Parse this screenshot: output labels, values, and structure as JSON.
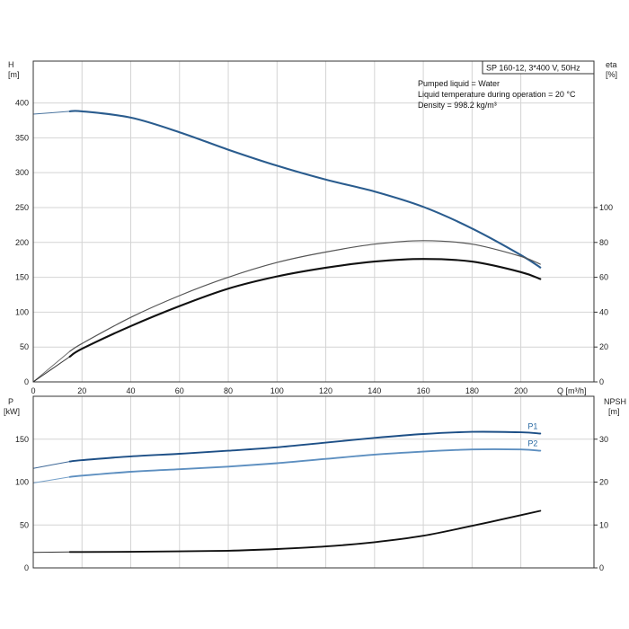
{
  "chart_data": [
    {
      "type": "line",
      "title": "SP 160-12, 3*400 V, 50Hz",
      "notes": [
        "Pumped liquid = Water",
        "Liquid temperature during operation = 20 °C",
        "Density = 998.2 kg/m³"
      ],
      "xlabel": "Q [m³/h]",
      "ylabel_left": "H",
      "ylabel_left_unit": "[m]",
      "ylabel_right": "eta",
      "ylabel_right_unit": "[%]",
      "xlim": [
        0,
        230
      ],
      "ylim_left": [
        0,
        460
      ],
      "ylim_right": [
        0,
        184
      ],
      "x_ticks": [
        0,
        20,
        40,
        60,
        80,
        100,
        120,
        140,
        160,
        180,
        200
      ],
      "y_left_ticks": [
        0,
        50,
        100,
        150,
        200,
        250,
        300,
        350,
        400
      ],
      "y_right_ticks": [
        0,
        20,
        40,
        60,
        80,
        100
      ],
      "grid": true,
      "series": [
        {
          "axis": "left",
          "color": "#2a5c8e",
          "x": [
            0,
            15,
            20,
            40,
            60,
            80,
            100,
            120,
            140,
            160,
            180,
            200,
            208
          ],
          "y": [
            384,
            388,
            388,
            379,
            358,
            333,
            310,
            290,
            273,
            251,
            220,
            182,
            164
          ]
        },
        {
          "axis": "right",
          "color": "#555555",
          "x": [
            0,
            15,
            20,
            40,
            60,
            80,
            100,
            120,
            140,
            160,
            180,
            200,
            208
          ],
          "y": [
            0,
            17.5,
            22,
            37,
            49.5,
            60,
            68.5,
            74.5,
            79,
            81,
            79,
            72,
            67.5
          ]
        },
        {
          "axis": "right",
          "color": "#111111",
          "x": [
            0,
            15,
            20,
            40,
            60,
            80,
            100,
            120,
            140,
            160,
            180,
            200,
            208
          ],
          "y": [
            0,
            14.5,
            19,
            32,
            43.5,
            53.5,
            60.5,
            65.5,
            69,
            70.5,
            69,
            63,
            59
          ]
        }
      ]
    },
    {
      "type": "line",
      "xlim": [
        0,
        230
      ],
      "ylabel_left": "P",
      "ylabel_left_unit": "[kW]",
      "ylabel_right": "NPSH",
      "ylabel_right_unit": "[m]",
      "ylim_left": [
        0,
        200
      ],
      "ylim_right": [
        0,
        40
      ],
      "x_ticks": [
        0,
        20,
        40,
        60,
        80,
        100,
        120,
        140,
        160,
        180,
        200
      ],
      "y_left_ticks": [
        0,
        50,
        100,
        150
      ],
      "y_right_ticks": [
        0,
        10,
        20,
        30
      ],
      "grid": true,
      "series": [
        {
          "name": "P1",
          "axis": "left",
          "color": "#1d4f86",
          "label_color": "#2a6aa3",
          "x": [
            0,
            15,
            20,
            40,
            60,
            80,
            100,
            120,
            140,
            160,
            180,
            200,
            208
          ],
          "y": [
            116,
            124,
            125.5,
            130,
            133,
            136.5,
            140.5,
            146,
            151.5,
            156,
            158.5,
            158,
            156.5
          ]
        },
        {
          "name": "P2",
          "axis": "left",
          "color": "#5d8fc0",
          "label_color": "#2a6aa3",
          "x": [
            0,
            15,
            20,
            40,
            60,
            80,
            100,
            120,
            140,
            160,
            180,
            200,
            208
          ],
          "y": [
            99,
            106,
            107.5,
            112,
            115,
            118,
            122,
            127,
            132,
            135.5,
            138,
            138,
            136.5
          ]
        },
        {
          "axis": "right",
          "color": "#111111",
          "x": [
            0,
            15,
            20,
            40,
            60,
            80,
            100,
            120,
            140,
            160,
            180,
            200,
            208
          ],
          "y": [
            3.6,
            3.7,
            3.7,
            3.75,
            3.85,
            4.0,
            4.4,
            5.0,
            6.0,
            7.5,
            9.8,
            12.3,
            13.3
          ]
        }
      ]
    }
  ]
}
